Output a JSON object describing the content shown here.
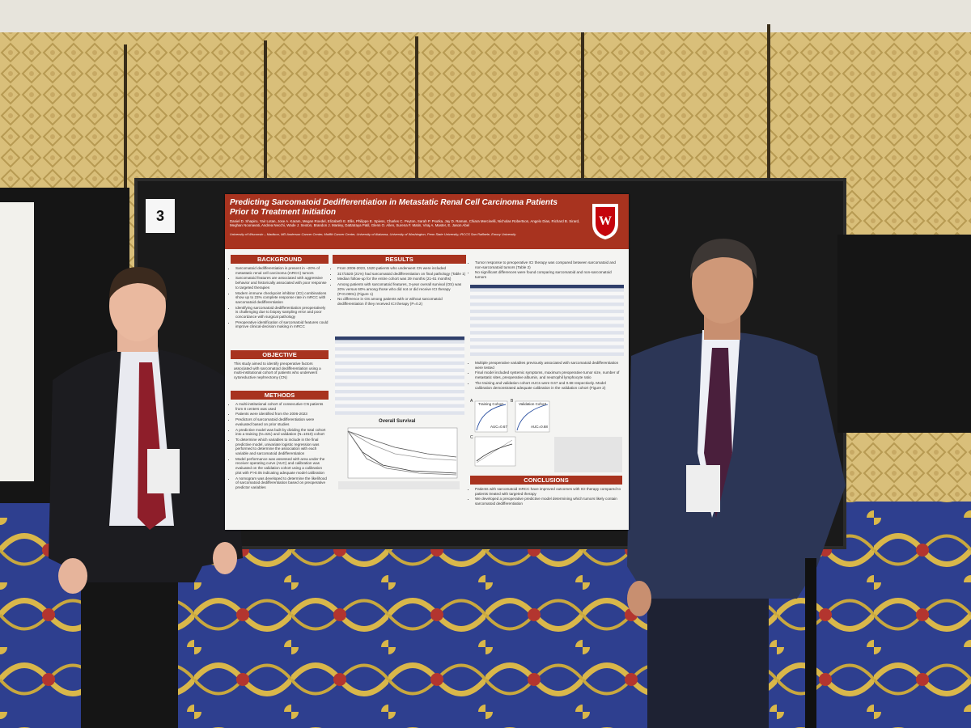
{
  "poster_number": "3",
  "poster": {
    "title": "Predicting Sarcomatoid Dedifferentiation in Metastatic Renal Cell Carcinoma Patients Prior to Treatment Initiation",
    "authors": "Daniel D. Shapiro, Yair Lotan, Jose A. Karam, Megan Roedel, Elizabeth E. Ellis, Philippe E. Spiess, Charles C. Peyton, Sarah P. Psutka, Jay D. Raman, Chiara Mercinelli, Nicholas Robertson, Angelo Dias, Richard B. Sirard, Meghan Noonavati, Andrea Necchi, Wade J. Sexton, Brandon J. Manley, Dattatraya Patil, Glenn O. Allen, Surena F. Matin, Viraj A. Master, E. Jason Abel",
    "affiliations": "University of Wisconsin – Madison, MD Anderson Cancer Center, Moffitt Cancer Center, University of Alabama, University of Washington, Penn State University, IRCCS San Raffaele, Emory University",
    "background": {
      "heading": "BACKGROUND",
      "bullets": [
        "Sarcomatoid dedifferentiation is present in ~20% of metastatic renal cell carcinoma (mRCC) tumors",
        "Sarcomatoid features are associated with aggressive behavior and historically associated with poor response to targeted therapies",
        "Modern immune checkpoint inhibitor (ICI) combinations show up to 23% complete response rate in mRCC with sarcomatoid dedifferentiation",
        "Identifying sarcomatoid dedifferentiation preoperatively is challenging due to biopsy sampling error and poor concordance with surgical pathology",
        "Preoperative identification of sarcomatoid features could improve clinical-decision making in mRCC"
      ]
    },
    "objective": {
      "heading": "OBJECTIVE",
      "text": "This study aimed to identify preoperative factors associated with sarcomatoid dedifferentiation using a multi-institutional cohort of patients who underwent cytoreductive nephrectomy (CN)"
    },
    "methods": {
      "heading": "METHODS",
      "bullets": [
        "A multi-institutional cohort of consecutive CN patients from 8 centers was used",
        "Patients were identified from the 2006-2023",
        "Predictors of sarcomatoid dedifferentiation were evaluated based on prior studies",
        "A predictive model was built by dividing the total cohort into a training (N=321) and validation (N=1010) cohort",
        "To determine which variables to include in the final predictive model, univariate logistic regression was performed to determine the association with each variable and sarcomatoid dedifferentiation",
        "Model performance was assessed with area under the receiver operating curve (AUC) and calibration was evaluated on the validation cohort using a calibration plot with P>0.05 indicating adequate model calibration",
        "A nomogram was developed to determine the likelihood of sarcomatoid dedifferentiation based on preoperative predictor variables"
      ]
    },
    "results": {
      "heading": "RESULTS",
      "bullets": [
        "From 2006-2023, 1520 patients who underwent CN were included",
        "317/1520 (21%) had sarcomatoid dedifferentiation on final pathology (Table 1)",
        "Median follow-up for the entire cohort was 39 months (21-61 months)",
        "Among patients with sarcomatoid features, 3-year overall survival (OS) was 20% versus 60% among those who did not or did receive ICI therapy (P<0.0001) (Figure 1)",
        "No difference in OS among patients with or without sarcomatoid dedifferentiation if they received ICI therapy (P=0.2)"
      ],
      "survival_title": "Overall Survival",
      "right_bullets": [
        "Tumor response to preoperative ICI therapy was compared between sarcomatoid and non-sarcomatoid tumors (Table 2)",
        "No significant differences were found comparing sarcomatoid and non-sarcomatoid tumors"
      ],
      "model_bullets": [
        "Multiple preoperative variables previously associated with sarcomatoid dedifferentiation were tested",
        "Final model included systemic symptoms, maximum preoperative tumor size, number of metastatic sites, preoperative albumin, and neutrophil lymphocyte ratio",
        "The training and validation cohort AUCs were 0.67 and 0.68 respectively. Model calibration demonstrated adequate calibration in the validation cohort (Figure 2)"
      ],
      "panel_a": "A",
      "panel_b": "B",
      "panel_c": "C",
      "training_label": "Training Cohort",
      "validation_label": "Validation Cohort",
      "training_auc": "AUC=0.67",
      "validation_auc": "AUC=0.68"
    },
    "conclusions": {
      "heading": "CONCLUSIONS",
      "bullets": [
        "Patients with sarcomatoid mRCC have improved outcomes with ICI therapy compared to patients treated with targeted therapy",
        "We developed a preoperative predictive model determining which tumors likely contain sarcomatoid dedifferentiation"
      ]
    }
  }
}
